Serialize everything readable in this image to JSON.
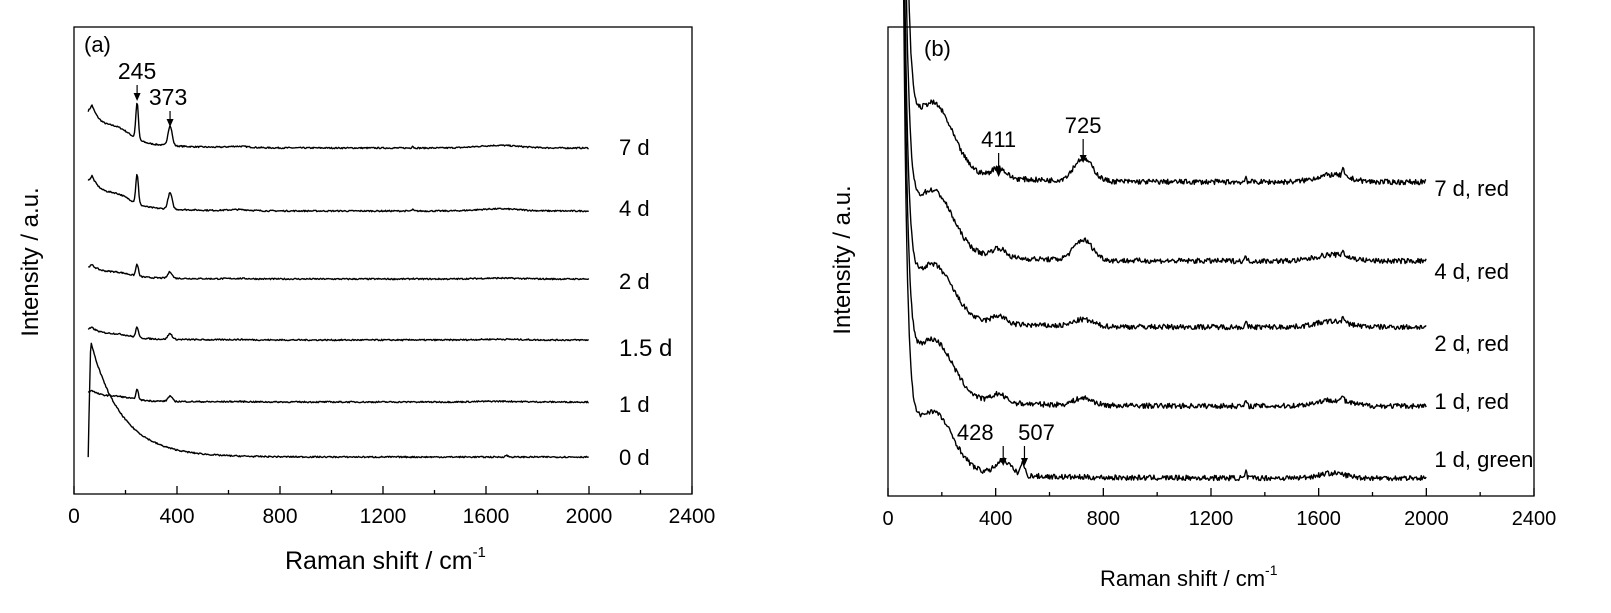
{
  "chart_data": [
    {
      "type": "line",
      "panel_label": "(a)",
      "xlabel": "Raman shift / cm",
      "xlabel_sup": "-1",
      "ylabel": "Intensity / a.u.",
      "xlim": [
        0,
        2400
      ],
      "xticks": [
        "0",
        "400",
        "800",
        "1200",
        "1600",
        "2000",
        "2400"
      ],
      "series": [
        {
          "name": "7 d",
          "baseline": 0.88,
          "amp": 0.55
        },
        {
          "name": "4 d",
          "baseline": 0.73,
          "amp": 0.45
        },
        {
          "name": "2 d",
          "baseline": 0.55,
          "amp": 0.18
        },
        {
          "name": "1.5 d",
          "baseline": 0.39,
          "amp": 0.16
        },
        {
          "name": "1 d",
          "baseline": 0.23,
          "amp": 0.15
        },
        {
          "name": "0 d",
          "baseline": 0.08,
          "amp": 0.48
        }
      ],
      "annotations": [
        {
          "label": "245",
          "x": 245
        },
        {
          "label": "373",
          "x": 373
        }
      ]
    },
    {
      "type": "line",
      "panel_label": "(b)",
      "xlabel": "Raman shift / cm",
      "xlabel_sup": "-1",
      "ylabel": "Intensity / a.u.",
      "xlim": [
        0,
        2400
      ],
      "xticks": [
        "0",
        "400",
        "800",
        "1200",
        "1600",
        "2000",
        "2400"
      ],
      "series": [
        {
          "name": "7 d, red",
          "baseline": 0.66,
          "amp": 0.95
        },
        {
          "name": "4 d, red",
          "baseline": 0.5,
          "amp": 0.85
        },
        {
          "name": "2 d, red",
          "baseline": 0.36,
          "amp": 0.75
        },
        {
          "name": "1 d, red",
          "baseline": 0.19,
          "amp": 0.8
        },
        {
          "name": "1 d, green",
          "baseline": 0.04,
          "amp": 0.8
        }
      ],
      "annotations": [
        {
          "label": "411",
          "x": 411
        },
        {
          "label": "725",
          "x": 725
        },
        {
          "label": "428",
          "x": 428
        },
        {
          "label": "507",
          "x": 507
        }
      ]
    }
  ]
}
